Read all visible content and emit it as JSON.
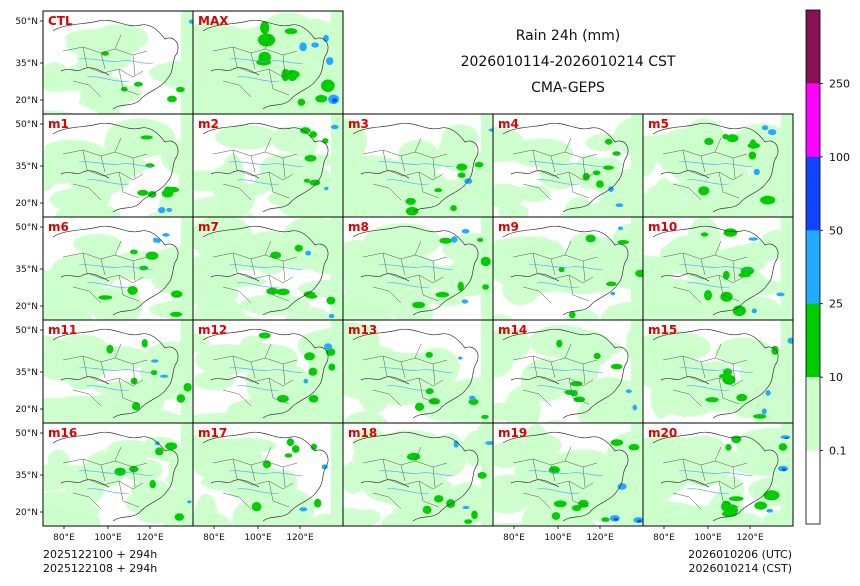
{
  "chart_data": {
    "type": "heatmap",
    "variable": "Rain 24h (mm)",
    "title_lines": [
      "Rain 24h (mm)",
      "2026010114-2026010214 CST",
      "CMA-GEPS"
    ],
    "panels": [
      {
        "label": "CTL",
        "intensity": 0.25
      },
      {
        "label": "MAX",
        "intensity": 0.9
      },
      {
        "label": "m1",
        "intensity": 0.45
      },
      {
        "label": "m2",
        "intensity": 0.4
      },
      {
        "label": "m3",
        "intensity": 0.45
      },
      {
        "label": "m4",
        "intensity": 0.4
      },
      {
        "label": "m5",
        "intensity": 0.6
      },
      {
        "label": "m6",
        "intensity": 0.5
      },
      {
        "label": "m7",
        "intensity": 0.45
      },
      {
        "label": "m8",
        "intensity": 0.5
      },
      {
        "label": "m9",
        "intensity": 0.35
      },
      {
        "label": "m10",
        "intensity": 0.55
      },
      {
        "label": "m11",
        "intensity": 0.45
      },
      {
        "label": "m12",
        "intensity": 0.45
      },
      {
        "label": "m13",
        "intensity": 0.4
      },
      {
        "label": "m14",
        "intensity": 0.45
      },
      {
        "label": "m15",
        "intensity": 0.5
      },
      {
        "label": "m16",
        "intensity": 0.4
      },
      {
        "label": "m17",
        "intensity": 0.45
      },
      {
        "label": "m18",
        "intensity": 0.55
      },
      {
        "label": "m19",
        "intensity": 0.6
      },
      {
        "label": "m20",
        "intensity": 0.65
      }
    ],
    "lat_ticks": [
      "50°N",
      "35°N",
      "20°N"
    ],
    "lon_ticks": [
      "80°E",
      "100°E",
      "120°E"
    ],
    "colorbar": {
      "levels": [
        "0.1",
        "10",
        "25",
        "50",
        "100",
        "250"
      ],
      "colors": [
        "#ffffff",
        "#ccffcc",
        "#00cc00",
        "#22aaff",
        "#1144ff",
        "#ff00ff",
        "#881155"
      ]
    },
    "footer": {
      "left": [
        "2025122100 + 294h",
        "2025122108 + 294h"
      ],
      "right": [
        "2026010206 (UTC)",
        "2026010214 (CST)"
      ]
    }
  }
}
